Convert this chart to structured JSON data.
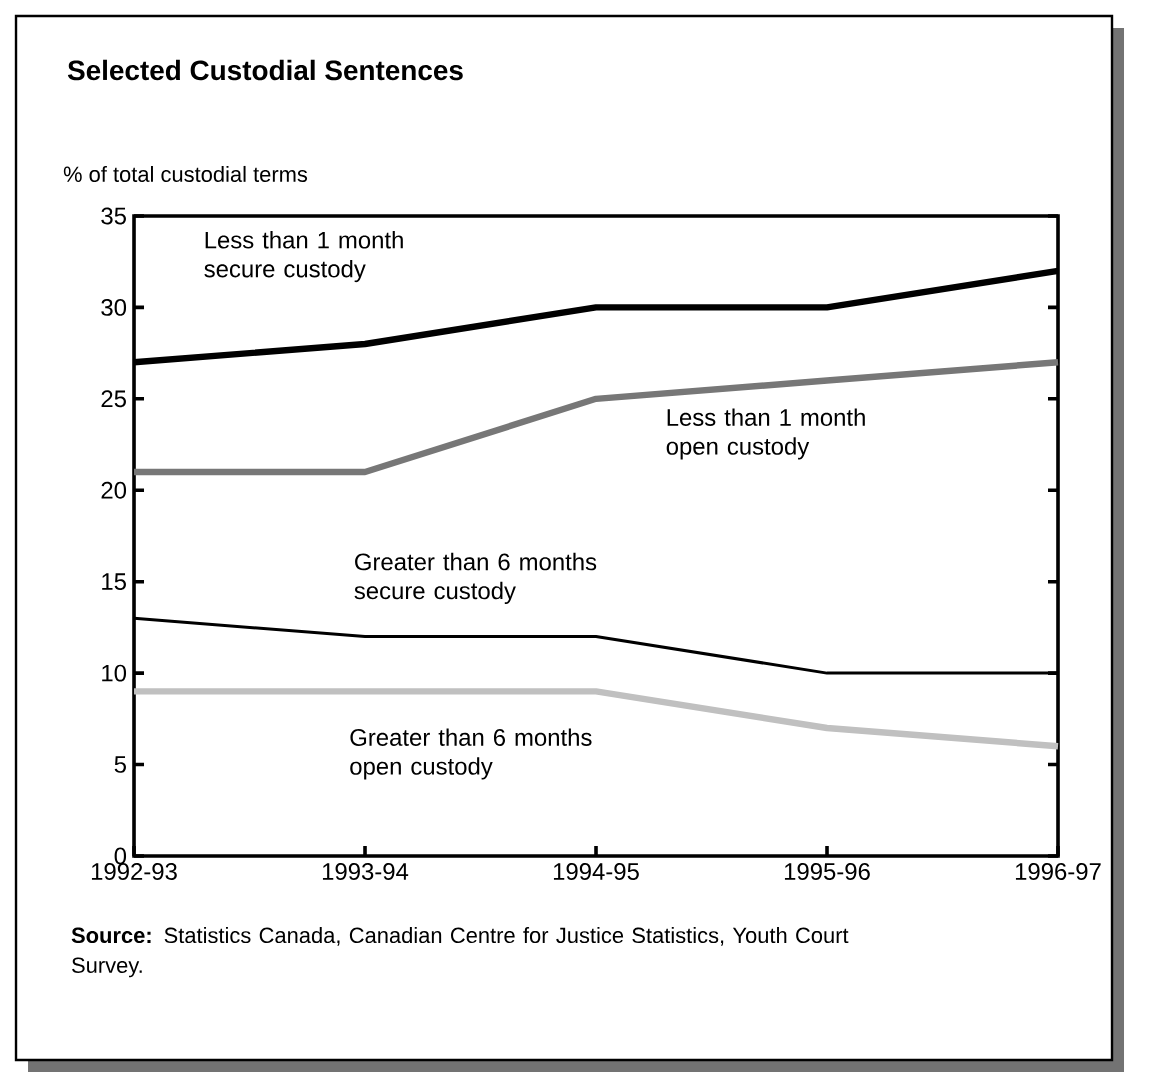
{
  "chart_data": {
    "type": "line",
    "title": "Selected Custodial Sentences",
    "ylabel": "% of total custodial terms",
    "categories": [
      "1992-93",
      "1993-94",
      "1994-95",
      "1995-96",
      "1996-97"
    ],
    "series": [
      {
        "name": "Less than 1 month secure custody",
        "color": "#000000",
        "values": [
          27,
          28,
          30,
          30,
          32
        ]
      },
      {
        "name": "Less than 1 month open custody",
        "color": "#777777",
        "values": [
          21,
          21,
          25,
          26,
          27
        ]
      },
      {
        "name": "Greater than 6 months secure custody",
        "color": "#000000",
        "values": [
          13,
          12,
          12,
          10,
          10
        ]
      },
      {
        "name": "Greater than 6 months open custody",
        "color": "#c0c0c0",
        "values": [
          9,
          9,
          9,
          7,
          6
        ]
      }
    ],
    "ylim": [
      0,
      35
    ],
    "yticks": [
      0,
      5,
      10,
      15,
      20,
      25,
      30,
      35
    ],
    "grid": false,
    "marker": "none",
    "line_style": "solid",
    "annotations": [
      "**Source:** Statistics Canada, Canadian Centre for Justice Statistics, Youth Court Survey."
    ]
  }
}
